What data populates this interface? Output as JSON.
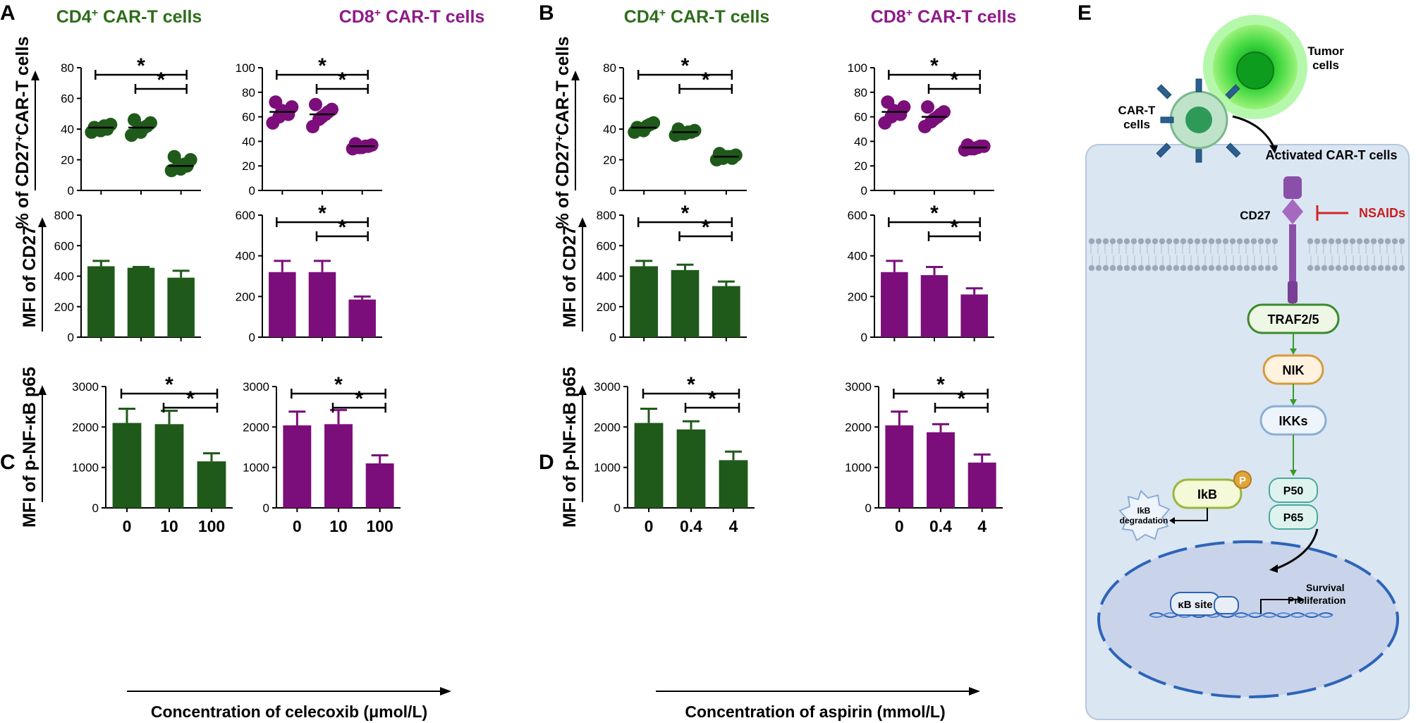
{
  "panels": [
    {
      "letter": "A",
      "colors": {
        "cd4": "#1f5a1a",
        "cd8": "#7b0e7a"
      }
    },
    {
      "letter": "B"
    },
    {
      "letter": "C"
    },
    {
      "letter": "D"
    },
    {
      "letter": "E"
    }
  ],
  "cols": [
    {
      "title_main": "CD4",
      "title_sup": "+",
      "title_rest": " CAR-T cells",
      "color": "#2d6d1a"
    },
    {
      "title_main": "CD8",
      "title_sup": "+",
      "title_rest": " CAR-T cells",
      "color": "#8e1a89"
    },
    {
      "title_main": "CD4",
      "title_sup": "+",
      "title_rest": " CAR-T cells",
      "color": "#2d6d1a"
    },
    {
      "title_main": "CD8",
      "title_sup": "+",
      "title_rest": " CAR-T cells",
      "color": "#8e1a89"
    }
  ],
  "y_labels": {
    "row1_pre": "% of CD27",
    "row1_sup": "+",
    "row1_post": "CAR-T cells",
    "row2": "MFI of CD27",
    "row3": "MFI of p-NF-κB p65"
  },
  "x_axes": [
    {
      "label": "Concentration of celecoxib (μmol/L)",
      "ticks": [
        "0",
        "10",
        "100"
      ]
    },
    {
      "label": "Concentration of aspirin (mmol/L)",
      "ticks": [
        "0",
        "0.4",
        "4"
      ]
    }
  ],
  "chart_data": [
    {
      "id": "A-CD4-pct",
      "type": "scatter",
      "categories": [
        "0",
        "10",
        "100"
      ],
      "ylim": [
        0,
        80
      ],
      "yticks": [
        0,
        20,
        40,
        60,
        80
      ],
      "means": [
        41,
        41,
        16
      ],
      "points": [
        [
          38,
          40,
          42,
          43,
          41,
          39,
          40
        ],
        [
          36,
          39,
          41,
          44,
          46,
          38,
          42
        ],
        [
          13,
          15,
          17,
          20,
          22,
          14,
          16
        ]
      ],
      "sig": [
        "*",
        "*"
      ]
    },
    {
      "id": "A-CD8-pct",
      "type": "scatter",
      "categories": [
        "0",
        "10",
        "100"
      ],
      "ylim": [
        0,
        100
      ],
      "yticks": [
        0,
        20,
        40,
        60,
        80,
        100
      ],
      "means": [
        64,
        62,
        36
      ],
      "points": [
        [
          55,
          60,
          64,
          68,
          72,
          65,
          62
        ],
        [
          52,
          58,
          62,
          66,
          70,
          60,
          64
        ],
        [
          34,
          35,
          36,
          37,
          38,
          35,
          36
        ]
      ],
      "sig": [
        "*",
        "*"
      ]
    },
    {
      "id": "B-CD4-pct",
      "type": "scatter",
      "categories": [
        "0",
        "0.4",
        "4"
      ],
      "ylim": [
        0,
        80
      ],
      "yticks": [
        0,
        20,
        40,
        60,
        80
      ],
      "means": [
        41,
        38,
        22
      ],
      "points": [
        [
          38,
          40,
          42,
          44,
          41,
          39,
          43
        ],
        [
          36,
          37,
          38,
          39,
          40,
          37,
          38
        ],
        [
          20,
          21,
          22,
          23,
          24,
          22,
          21
        ]
      ],
      "sig": [
        "*",
        "*"
      ]
    },
    {
      "id": "B-CD8-pct",
      "type": "scatter",
      "categories": [
        "0",
        "0.4",
        "4"
      ],
      "ylim": [
        0,
        100
      ],
      "yticks": [
        0,
        20,
        40,
        60,
        80,
        100
      ],
      "means": [
        64,
        60,
        35
      ],
      "points": [
        [
          55,
          60,
          64,
          68,
          72,
          65,
          62
        ],
        [
          52,
          56,
          60,
          64,
          68,
          58,
          62
        ],
        [
          33,
          34,
          35,
          36,
          37,
          34,
          36
        ]
      ],
      "sig": [
        "*",
        "*"
      ]
    },
    {
      "id": "A-CD4-mfi",
      "type": "bar",
      "categories": [
        "0",
        "10",
        "100"
      ],
      "ylim": [
        0,
        800
      ],
      "yticks": [
        0,
        200,
        400,
        600,
        800
      ],
      "values": [
        465,
        455,
        390
      ],
      "errors": [
        35,
        5,
        45
      ],
      "sig": []
    },
    {
      "id": "A-CD8-mfi",
      "type": "bar",
      "categories": [
        "0",
        "10",
        "100"
      ],
      "ylim": [
        0,
        600
      ],
      "yticks": [
        0,
        200,
        400,
        600
      ],
      "values": [
        320,
        320,
        185
      ],
      "errors": [
        55,
        55,
        15
      ],
      "sig": [
        "*",
        "*"
      ]
    },
    {
      "id": "B-CD4-mfi",
      "type": "bar",
      "categories": [
        "0",
        "0.4",
        "4"
      ],
      "ylim": [
        0,
        800
      ],
      "yticks": [
        0,
        200,
        400,
        600,
        800
      ],
      "values": [
        465,
        440,
        335
      ],
      "errors": [
        35,
        35,
        30
      ],
      "sig": [
        "*",
        "*"
      ]
    },
    {
      "id": "B-CD8-mfi",
      "type": "bar",
      "categories": [
        "0",
        "0.4",
        "4"
      ],
      "ylim": [
        0,
        600
      ],
      "yticks": [
        0,
        200,
        400,
        600
      ],
      "values": [
        320,
        305,
        210
      ],
      "errors": [
        55,
        40,
        30
      ],
      "sig": [
        "*",
        "*"
      ]
    },
    {
      "id": "C-CD4-p65",
      "type": "bar",
      "categories": [
        "0",
        "10",
        "100"
      ],
      "ylim": [
        0,
        3000
      ],
      "yticks": [
        0,
        1000,
        2000,
        3000
      ],
      "values": [
        2100,
        2070,
        1150
      ],
      "errors": [
        350,
        330,
        200
      ],
      "sig": [
        "*",
        "*"
      ]
    },
    {
      "id": "C-CD8-p65",
      "type": "bar",
      "categories": [
        "0",
        "10",
        "100"
      ],
      "ylim": [
        0,
        3000
      ],
      "yticks": [
        0,
        1000,
        2000,
        3000
      ],
      "values": [
        2040,
        2070,
        1100
      ],
      "errors": [
        340,
        350,
        200
      ],
      "sig": [
        "*",
        "*"
      ]
    },
    {
      "id": "D-CD4-p65",
      "type": "bar",
      "categories": [
        "0",
        "0.4",
        "4"
      ],
      "ylim": [
        0,
        3000
      ],
      "yticks": [
        0,
        1000,
        2000,
        3000
      ],
      "values": [
        2100,
        1940,
        1180
      ],
      "errors": [
        350,
        200,
        210
      ],
      "sig": [
        "*",
        "*"
      ]
    },
    {
      "id": "D-CD8-p65",
      "type": "bar",
      "categories": [
        "0",
        "0.4",
        "4"
      ],
      "ylim": [
        0,
        3000
      ],
      "yticks": [
        0,
        1000,
        2000,
        3000
      ],
      "values": [
        2040,
        1870,
        1120
      ],
      "errors": [
        340,
        200,
        200
      ],
      "sig": [
        "*",
        "*"
      ]
    }
  ],
  "diagram": {
    "tumor": "Tumor cells",
    "cart": "CAR-T cells",
    "activated": "Activated CAR-T cells",
    "cd27": "CD27",
    "nsaids": "NSAIDs",
    "traf": "TRAF2/5",
    "nik": "NIK",
    "ikks": "IKKs",
    "ikb": "IkB",
    "p": "P",
    "p50": "P50",
    "p65": "P65",
    "degr1": "IkB",
    "degr2": "degradation",
    "kb": "κB site",
    "surv": "Survival",
    "prolif": "Proliferation"
  }
}
